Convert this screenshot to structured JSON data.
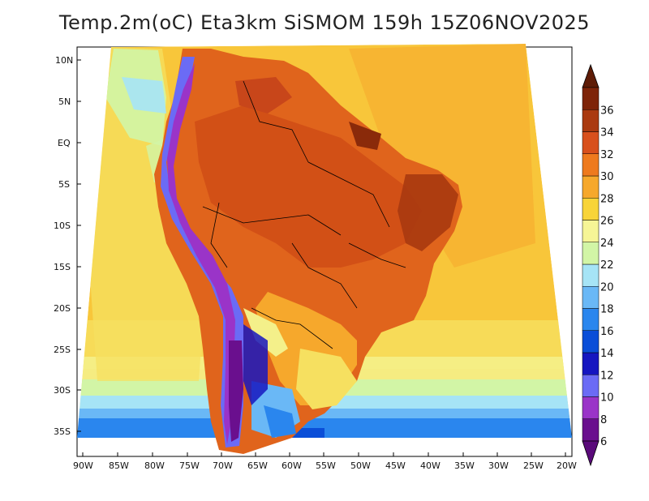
{
  "title": "Temp.2m(oC) Eta3km SiSMOM 159h 15Z06NOV2025",
  "lat_labels": [
    "10N",
    "5N",
    "EQ",
    "5S",
    "10S",
    "15S",
    "20S",
    "25S",
    "30S",
    "35S"
  ],
  "lon_labels": [
    "90W",
    "85W",
    "80W",
    "75W",
    "70W",
    "65W",
    "60W",
    "55W",
    "50W",
    "45W",
    "40W",
    "35W",
    "30W",
    "25W",
    "20W"
  ],
  "colorbar": {
    "unit": "oC",
    "levels": [
      "6",
      "8",
      "10",
      "12",
      "14",
      "16",
      "18",
      "20",
      "22",
      "24",
      "26",
      "28",
      "30",
      "32",
      "34",
      "36"
    ],
    "colors": [
      "#6a0f8e",
      "#9a34c8",
      "#6b6bf5",
      "#1616c0",
      "#0a4ed8",
      "#2a86ee",
      "#6ab8f6",
      "#a6e4f6",
      "#d2f5a6",
      "#f6f596",
      "#f8d438",
      "#f6a82c",
      "#ee7a1e",
      "#d8501c",
      "#aa3a10",
      "#7e2408"
    ],
    "under_color": "#5a0a7a",
    "over_color": "#5e1c06"
  }
}
